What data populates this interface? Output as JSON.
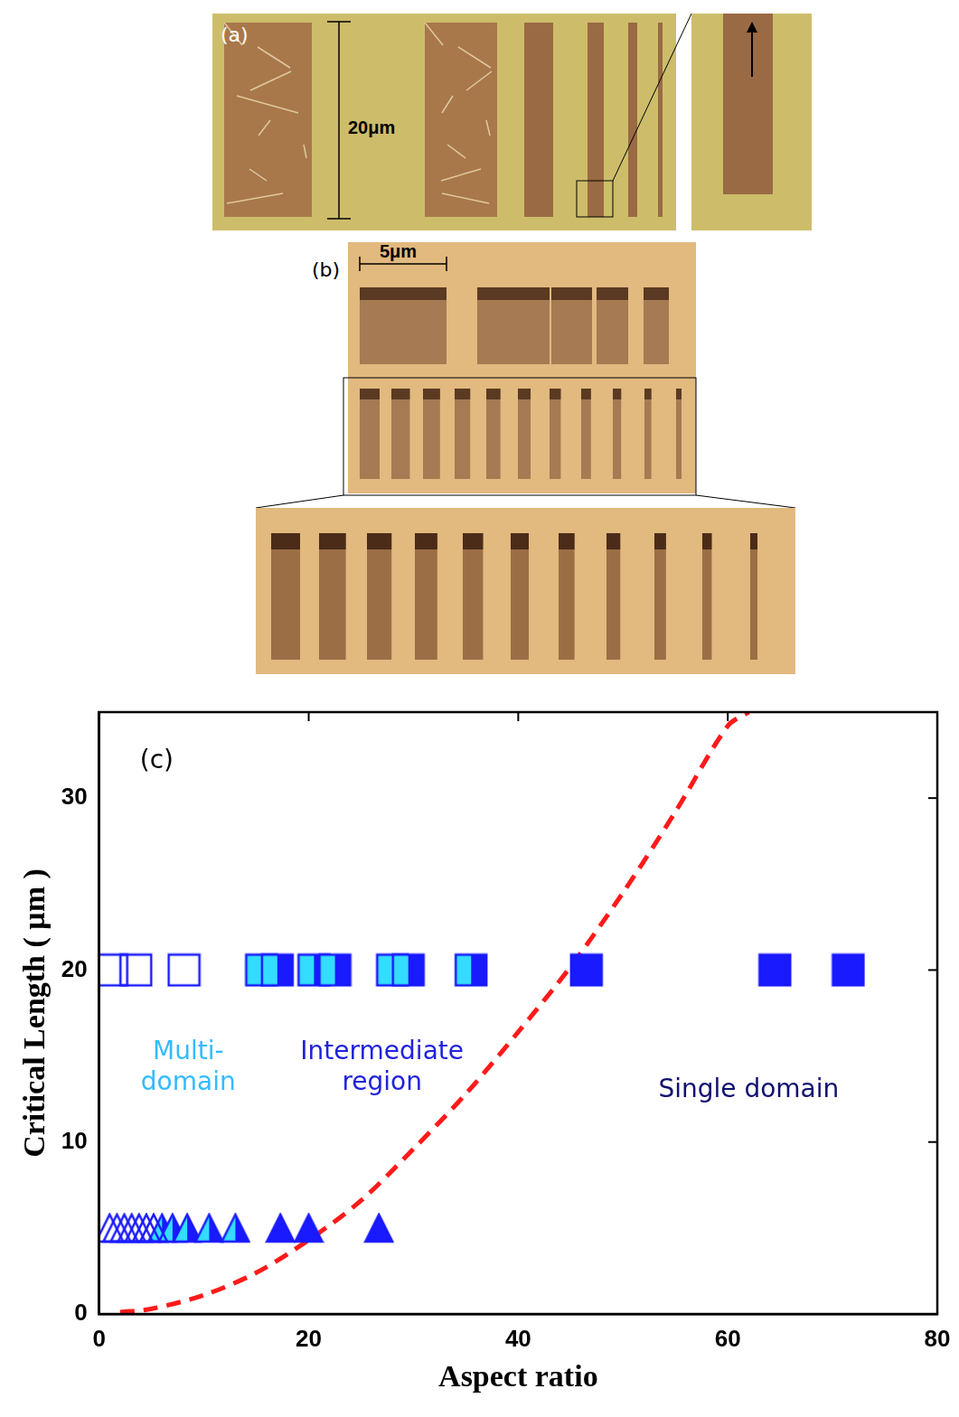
{
  "image_panels": [
    {
      "label": "(a)",
      "scale_text": "20μm"
    },
    {
      "label": "(b)",
      "scale_text": "5μm"
    }
  ],
  "chart_data": {
    "type": "scatter",
    "panel_label": "(c)",
    "x_label": "Aspect ratio",
    "y_label": "Critical Length ( μm )",
    "xlim": [
      0,
      80
    ],
    "xticks": [
      0,
      20,
      40,
      60,
      80
    ],
    "ylim": [
      0,
      35
    ],
    "yticks": [
      0,
      10,
      20,
      30
    ],
    "grid": false,
    "annotations": [
      {
        "lines": [
          "Multi-",
          "domain"
        ],
        "color": "#33bbff"
      },
      {
        "lines": [
          "Intermediate",
          "region"
        ],
        "color": "#2222dd"
      },
      {
        "lines": [
          "Single domain"
        ],
        "color": "#101070"
      }
    ],
    "series": [
      {
        "marker": "square-open",
        "color": "#1a1aff",
        "x": [
          1.2,
          3.5,
          8.1
        ],
        "values": [
          20,
          20,
          20
        ]
      },
      {
        "marker": "square-half",
        "color": "#1a1aff",
        "x": [
          15.5,
          17,
          20.5,
          22.5,
          28,
          29.5,
          35.5
        ],
        "values": [
          20,
          20,
          20,
          20,
          20,
          20,
          20
        ]
      },
      {
        "marker": "square",
        "color": "#1a1aff",
        "x": [
          46.5,
          64.5,
          71.5
        ],
        "values": [
          20,
          20,
          20
        ]
      },
      {
        "marker": "triangle-open",
        "color": "#1a1aff",
        "x": [
          1,
          1.7,
          2.4,
          3.1,
          3.8,
          4.5,
          5.2
        ],
        "values": [
          5,
          5,
          5,
          5,
          5,
          5,
          5
        ]
      },
      {
        "marker": "triangle-half",
        "color": "#1a1aff",
        "x": [
          6,
          7,
          8.4,
          10.5,
          13
        ],
        "values": [
          5,
          5,
          5,
          5,
          5
        ]
      },
      {
        "marker": "triangle",
        "color": "#1a1aff",
        "x": [
          17.3,
          20,
          26.7
        ],
        "values": [
          5,
          5,
          5
        ]
      },
      {
        "type": "line",
        "marker": "none",
        "line_style": "dashed",
        "color": "#ff1a1a",
        "x": [
          2,
          5,
          10,
          15,
          20,
          25,
          30,
          35,
          40,
          45,
          50,
          55,
          60,
          62
        ],
        "values": [
          0.1,
          0.3,
          1.1,
          2.4,
          4.3,
          6.6,
          9.6,
          12.8,
          16.4,
          20.2,
          24.5,
          29.2,
          34.2,
          35
        ]
      }
    ]
  }
}
